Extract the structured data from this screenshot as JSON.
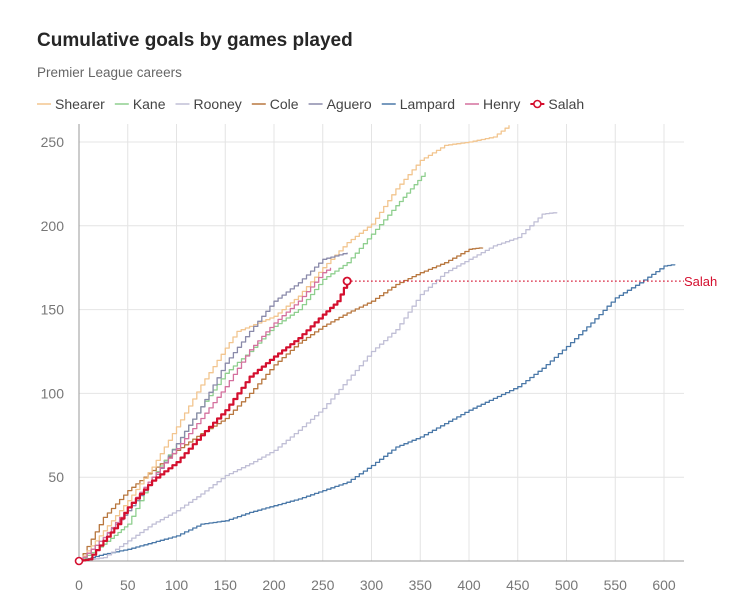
{
  "title": "Cumulative goals by games played",
  "subtitle": "Premier League careers",
  "chart_data": {
    "type": "line",
    "xlim": [
      0,
      620
    ],
    "ylim": [
      0,
      260
    ],
    "x_ticks": [
      0,
      50,
      100,
      150,
      200,
      250,
      300,
      350,
      400,
      450,
      500,
      550,
      600
    ],
    "y_ticks": [
      50,
      100,
      150,
      200,
      250
    ],
    "grid": true,
    "legend": "top-left",
    "highlight": {
      "series": "Salah",
      "value": 167,
      "label": "Salah",
      "color": "#d40f2e"
    },
    "series": [
      {
        "name": "Shearer",
        "color": "#f2c58f",
        "points": [
          [
            0,
            0
          ],
          [
            25,
            18
          ],
          [
            50,
            36
          ],
          [
            75,
            56
          ],
          [
            100,
            80
          ],
          [
            125,
            105
          ],
          [
            150,
            127
          ],
          [
            162,
            137
          ],
          [
            175,
            140
          ],
          [
            200,
            146
          ],
          [
            225,
            158
          ],
          [
            250,
            175
          ],
          [
            275,
            190
          ],
          [
            300,
            201
          ],
          [
            325,
            222
          ],
          [
            350,
            239
          ],
          [
            375,
            248
          ],
          [
            400,
            250
          ],
          [
            425,
            253
          ],
          [
            441,
            260
          ]
        ]
      },
      {
        "name": "Kane",
        "color": "#8fcf8f",
        "points": [
          [
            0,
            0
          ],
          [
            25,
            10
          ],
          [
            40,
            17
          ],
          [
            50,
            22
          ],
          [
            75,
            50
          ],
          [
            100,
            70
          ],
          [
            125,
            92
          ],
          [
            150,
            112
          ],
          [
            175,
            125
          ],
          [
            200,
            140
          ],
          [
            225,
            150
          ],
          [
            250,
            168
          ],
          [
            275,
            178
          ],
          [
            300,
            195
          ],
          [
            325,
            212
          ],
          [
            355,
            232
          ]
        ]
      },
      {
        "name": "Rooney",
        "color": "#c0bfd6",
        "points": [
          [
            0,
            0
          ],
          [
            25,
            2
          ],
          [
            50,
            12
          ],
          [
            75,
            22
          ],
          [
            100,
            30
          ],
          [
            125,
            40
          ],
          [
            150,
            51
          ],
          [
            175,
            58
          ],
          [
            200,
            66
          ],
          [
            225,
            78
          ],
          [
            250,
            91
          ],
          [
            275,
            108
          ],
          [
            300,
            125
          ],
          [
            325,
            138
          ],
          [
            350,
            159
          ],
          [
            375,
            172
          ],
          [
            400,
            180
          ],
          [
            425,
            188
          ],
          [
            450,
            193
          ],
          [
            475,
            207
          ],
          [
            490,
            208
          ]
        ]
      },
      {
        "name": "Cole",
        "color": "#b8773f",
        "points": [
          [
            0,
            0
          ],
          [
            25,
            26
          ],
          [
            50,
            42
          ],
          [
            75,
            54
          ],
          [
            100,
            66
          ],
          [
            125,
            76
          ],
          [
            150,
            85
          ],
          [
            175,
            100
          ],
          [
            200,
            117
          ],
          [
            225,
            130
          ],
          [
            250,
            140
          ],
          [
            275,
            148
          ],
          [
            300,
            155
          ],
          [
            325,
            165
          ],
          [
            350,
            172
          ],
          [
            375,
            178
          ],
          [
            400,
            186
          ],
          [
            414,
            187
          ]
        ]
      },
      {
        "name": "Aguero",
        "color": "#8a8aaa",
        "points": [
          [
            0,
            0
          ],
          [
            25,
            14
          ],
          [
            50,
            30
          ],
          [
            75,
            48
          ],
          [
            100,
            70
          ],
          [
            125,
            92
          ],
          [
            150,
            118
          ],
          [
            175,
            137
          ],
          [
            200,
            155
          ],
          [
            225,
            166
          ],
          [
            250,
            180
          ],
          [
            275,
            184
          ]
        ]
      },
      {
        "name": "Lampard",
        "color": "#4a78a8",
        "points": [
          [
            0,
            0
          ],
          [
            25,
            4
          ],
          [
            50,
            7
          ],
          [
            75,
            11
          ],
          [
            100,
            15
          ],
          [
            125,
            22
          ],
          [
            150,
            24
          ],
          [
            175,
            29
          ],
          [
            200,
            33
          ],
          [
            225,
            37
          ],
          [
            250,
            42
          ],
          [
            275,
            47
          ],
          [
            300,
            57
          ],
          [
            325,
            68
          ],
          [
            350,
            74
          ],
          [
            375,
            82
          ],
          [
            400,
            90
          ],
          [
            425,
            97
          ],
          [
            450,
            104
          ],
          [
            475,
            115
          ],
          [
            500,
            128
          ],
          [
            525,
            142
          ],
          [
            550,
            157
          ],
          [
            575,
            166
          ],
          [
            600,
            176
          ],
          [
            611,
            177
          ]
        ]
      },
      {
        "name": "Henry",
        "color": "#d4709e",
        "points": [
          [
            0,
            0
          ],
          [
            25,
            14
          ],
          [
            50,
            32
          ],
          [
            75,
            50
          ],
          [
            100,
            67
          ],
          [
            125,
            85
          ],
          [
            150,
            104
          ],
          [
            175,
            126
          ],
          [
            200,
            142
          ],
          [
            225,
            155
          ],
          [
            250,
            172
          ],
          [
            258,
            175
          ]
        ]
      },
      {
        "name": "Salah",
        "color": "#d40f2e",
        "points": [
          [
            0,
            0
          ],
          [
            10,
            1
          ],
          [
            25,
            12
          ],
          [
            40,
            22
          ],
          [
            50,
            32
          ],
          [
            75,
            48
          ],
          [
            100,
            59
          ],
          [
            125,
            75
          ],
          [
            150,
            90
          ],
          [
            175,
            110
          ],
          [
            200,
            122
          ],
          [
            225,
            133
          ],
          [
            250,
            147
          ],
          [
            265,
            155
          ],
          [
            275,
            167
          ]
        ]
      }
    ]
  }
}
